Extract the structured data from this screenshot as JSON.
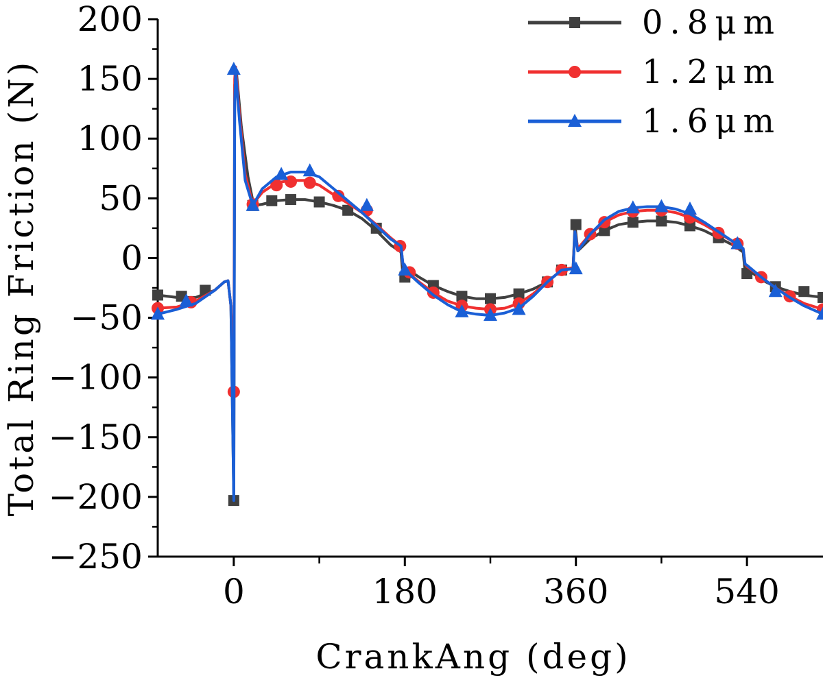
{
  "chart_data": {
    "type": "line",
    "title": "",
    "xlabel": "CrankAng (deg)",
    "ylabel": "Total Ring Friction (N)",
    "xlim": [
      -80,
      620
    ],
    "ylim": [
      -250,
      200
    ],
    "x_ticks": [
      0,
      180,
      360,
      540
    ],
    "y_ticks": [
      200,
      150,
      100,
      50,
      0,
      -50,
      -100,
      -150,
      -200,
      -250
    ],
    "legend_position": "top-right",
    "series": [
      {
        "name": "0.8μm",
        "color": "#404040",
        "marker": "square",
        "line": [
          [
            -80,
            -31
          ],
          [
            -60,
            -33
          ],
          [
            -40,
            -33
          ],
          [
            -20,
            -27
          ],
          [
            -10,
            -20
          ],
          [
            -6,
            -19
          ],
          [
            -3,
            -40
          ],
          [
            0,
            -203
          ],
          [
            1,
            145
          ],
          [
            3,
            154
          ],
          [
            8,
            110
          ],
          [
            15,
            68
          ],
          [
            21,
            44
          ],
          [
            30,
            45
          ],
          [
            45,
            48
          ],
          [
            60,
            49
          ],
          [
            75,
            49
          ],
          [
            90,
            47
          ],
          [
            105,
            44
          ],
          [
            120,
            40
          ],
          [
            135,
            33
          ],
          [
            150,
            23
          ],
          [
            165,
            11
          ],
          [
            176,
            5
          ],
          [
            178,
            -15
          ],
          [
            180,
            -8
          ],
          [
            195,
            -16
          ],
          [
            210,
            -23
          ],
          [
            225,
            -28
          ],
          [
            240,
            -32
          ],
          [
            255,
            -34
          ],
          [
            270,
            -34
          ],
          [
            285,
            -33
          ],
          [
            300,
            -30
          ],
          [
            315,
            -26
          ],
          [
            330,
            -20
          ],
          [
            345,
            -10
          ],
          [
            357,
            -8
          ],
          [
            359,
            28
          ],
          [
            362,
            6
          ],
          [
            375,
            16
          ],
          [
            390,
            23
          ],
          [
            405,
            28
          ],
          [
            420,
            30
          ],
          [
            435,
            31
          ],
          [
            450,
            31
          ],
          [
            465,
            30
          ],
          [
            480,
            27
          ],
          [
            495,
            23
          ],
          [
            510,
            17
          ],
          [
            525,
            11
          ],
          [
            536,
            5
          ],
          [
            538,
            -12
          ],
          [
            540,
            -9
          ],
          [
            555,
            -18
          ],
          [
            570,
            -24
          ],
          [
            585,
            -28
          ],
          [
            600,
            -31
          ],
          [
            620,
            -33
          ]
        ],
        "markers": [
          [
            -80,
            -31
          ],
          [
            -55,
            -32
          ],
          [
            -30,
            -27
          ],
          [
            0,
            -203
          ],
          [
            20,
            44
          ],
          [
            40,
            48
          ],
          [
            60,
            49
          ],
          [
            90,
            47
          ],
          [
            120,
            40
          ],
          [
            150,
            25
          ],
          [
            180,
            -16
          ],
          [
            210,
            -23
          ],
          [
            240,
            -32
          ],
          [
            270,
            -34
          ],
          [
            300,
            -30
          ],
          [
            330,
            -20
          ],
          [
            345,
            -10
          ],
          [
            360,
            28
          ],
          [
            390,
            23
          ],
          [
            420,
            30
          ],
          [
            450,
            31
          ],
          [
            480,
            27
          ],
          [
            510,
            17
          ],
          [
            540,
            -13
          ],
          [
            570,
            -24
          ],
          [
            600,
            -28
          ],
          [
            620,
            -33
          ]
        ]
      },
      {
        "name": "1.2μm",
        "color": "#f03030",
        "marker": "circle",
        "line": [
          [
            -80,
            -42
          ],
          [
            -60,
            -41
          ],
          [
            -40,
            -36
          ],
          [
            -20,
            -27
          ],
          [
            -10,
            -20
          ],
          [
            -6,
            -19
          ],
          [
            -3,
            -40
          ],
          [
            0,
            -112
          ],
          [
            1,
            150
          ],
          [
            2,
            160
          ],
          [
            6,
            120
          ],
          [
            12,
            70
          ],
          [
            20,
            45
          ],
          [
            30,
            55
          ],
          [
            45,
            63
          ],
          [
            60,
            65
          ],
          [
            75,
            65
          ],
          [
            90,
            61
          ],
          [
            105,
            53
          ],
          [
            120,
            46
          ],
          [
            135,
            38
          ],
          [
            150,
            28
          ],
          [
            165,
            17
          ],
          [
            176,
            10
          ],
          [
            178,
            -5
          ],
          [
            180,
            -10
          ],
          [
            195,
            -20
          ],
          [
            210,
            -29
          ],
          [
            225,
            -36
          ],
          [
            240,
            -40
          ],
          [
            255,
            -42
          ],
          [
            270,
            -43
          ],
          [
            285,
            -42
          ],
          [
            300,
            -38
          ],
          [
            315,
            -30
          ],
          [
            330,
            -20
          ],
          [
            345,
            -10
          ],
          [
            357,
            -8
          ],
          [
            359,
            22
          ],
          [
            362,
            8
          ],
          [
            375,
            20
          ],
          [
            390,
            30
          ],
          [
            405,
            36
          ],
          [
            420,
            39
          ],
          [
            435,
            40
          ],
          [
            450,
            40
          ],
          [
            465,
            38
          ],
          [
            480,
            34
          ],
          [
            495,
            28
          ],
          [
            510,
            21
          ],
          [
            525,
            14
          ],
          [
            536,
            8
          ],
          [
            538,
            -5
          ],
          [
            540,
            -7
          ],
          [
            555,
            -16
          ],
          [
            570,
            -25
          ],
          [
            585,
            -32
          ],
          [
            600,
            -38
          ],
          [
            620,
            -43
          ]
        ],
        "markers": [
          [
            -80,
            -42
          ],
          [
            -45,
            -37
          ],
          [
            0,
            -112
          ],
          [
            20,
            45
          ],
          [
            45,
            61
          ],
          [
            60,
            64
          ],
          [
            80,
            63
          ],
          [
            110,
            52
          ],
          [
            140,
            40
          ],
          [
            175,
            10
          ],
          [
            185,
            -12
          ],
          [
            210,
            -29
          ],
          [
            240,
            -40
          ],
          [
            270,
            -43
          ],
          [
            300,
            -38
          ],
          [
            330,
            -20
          ],
          [
            345,
            -10
          ],
          [
            375,
            20
          ],
          [
            390,
            30
          ],
          [
            420,
            39
          ],
          [
            450,
            40
          ],
          [
            480,
            34
          ],
          [
            510,
            21
          ],
          [
            530,
            12
          ],
          [
            555,
            -16
          ],
          [
            585,
            -32
          ],
          [
            620,
            -43
          ]
        ]
      },
      {
        "name": "1.6μm",
        "color": "#1a5fd6",
        "marker": "triangle",
        "line": [
          [
            -80,
            -47
          ],
          [
            -60,
            -43
          ],
          [
            -40,
            -38
          ],
          [
            -20,
            -27
          ],
          [
            -10,
            -20
          ],
          [
            -6,
            -19
          ],
          [
            -3,
            -40
          ],
          [
            0,
            -203
          ],
          [
            1,
            130
          ],
          [
            2,
            156
          ],
          [
            6,
            115
          ],
          [
            12,
            65
          ],
          [
            20,
            44
          ],
          [
            30,
            58
          ],
          [
            45,
            68
          ],
          [
            60,
            72
          ],
          [
            75,
            72
          ],
          [
            90,
            68
          ],
          [
            105,
            58
          ],
          [
            120,
            48
          ],
          [
            135,
            38
          ],
          [
            150,
            27
          ],
          [
            165,
            16
          ],
          [
            176,
            10
          ],
          [
            178,
            -5
          ],
          [
            180,
            -10
          ],
          [
            195,
            -21
          ],
          [
            210,
            -31
          ],
          [
            225,
            -39
          ],
          [
            240,
            -45
          ],
          [
            255,
            -47
          ],
          [
            270,
            -48
          ],
          [
            285,
            -46
          ],
          [
            300,
            -42
          ],
          [
            315,
            -32
          ],
          [
            330,
            -20
          ],
          [
            345,
            -10
          ],
          [
            357,
            -9
          ],
          [
            359,
            22
          ],
          [
            362,
            6
          ],
          [
            375,
            20
          ],
          [
            390,
            32
          ],
          [
            405,
            39
          ],
          [
            420,
            42
          ],
          [
            435,
            43
          ],
          [
            450,
            43
          ],
          [
            465,
            41
          ],
          [
            480,
            37
          ],
          [
            495,
            30
          ],
          [
            510,
            22
          ],
          [
            525,
            14
          ],
          [
            536,
            8
          ],
          [
            538,
            -5
          ],
          [
            540,
            -6
          ],
          [
            555,
            -16
          ],
          [
            570,
            -25
          ],
          [
            585,
            -33
          ],
          [
            600,
            -40
          ],
          [
            620,
            -47
          ]
        ],
        "markers": [
          [
            -80,
            -47
          ],
          [
            -50,
            -36
          ],
          [
            0,
            158
          ],
          [
            20,
            44
          ],
          [
            50,
            70
          ],
          [
            80,
            73
          ],
          [
            140,
            44
          ],
          [
            180,
            -10
          ],
          [
            240,
            -45
          ],
          [
            270,
            -48
          ],
          [
            300,
            -43
          ],
          [
            360,
            -9
          ],
          [
            420,
            42
          ],
          [
            450,
            43
          ],
          [
            480,
            41
          ],
          [
            530,
            12
          ],
          [
            570,
            -28
          ],
          [
            620,
            -47
          ]
        ]
      }
    ]
  }
}
